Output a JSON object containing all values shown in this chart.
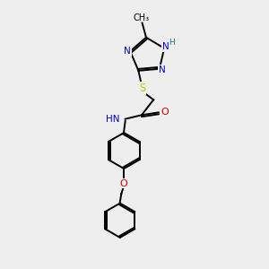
{
  "bg_color": "#eeeeee",
  "atom_colors": {
    "C": "#000000",
    "N": "#0000cc",
    "O": "#cc0000",
    "S": "#cccc00",
    "H": "#008080"
  },
  "bond_color": "#000000",
  "line_width": 1.4,
  "figsize": [
    3.0,
    3.0
  ],
  "dpi": 100
}
